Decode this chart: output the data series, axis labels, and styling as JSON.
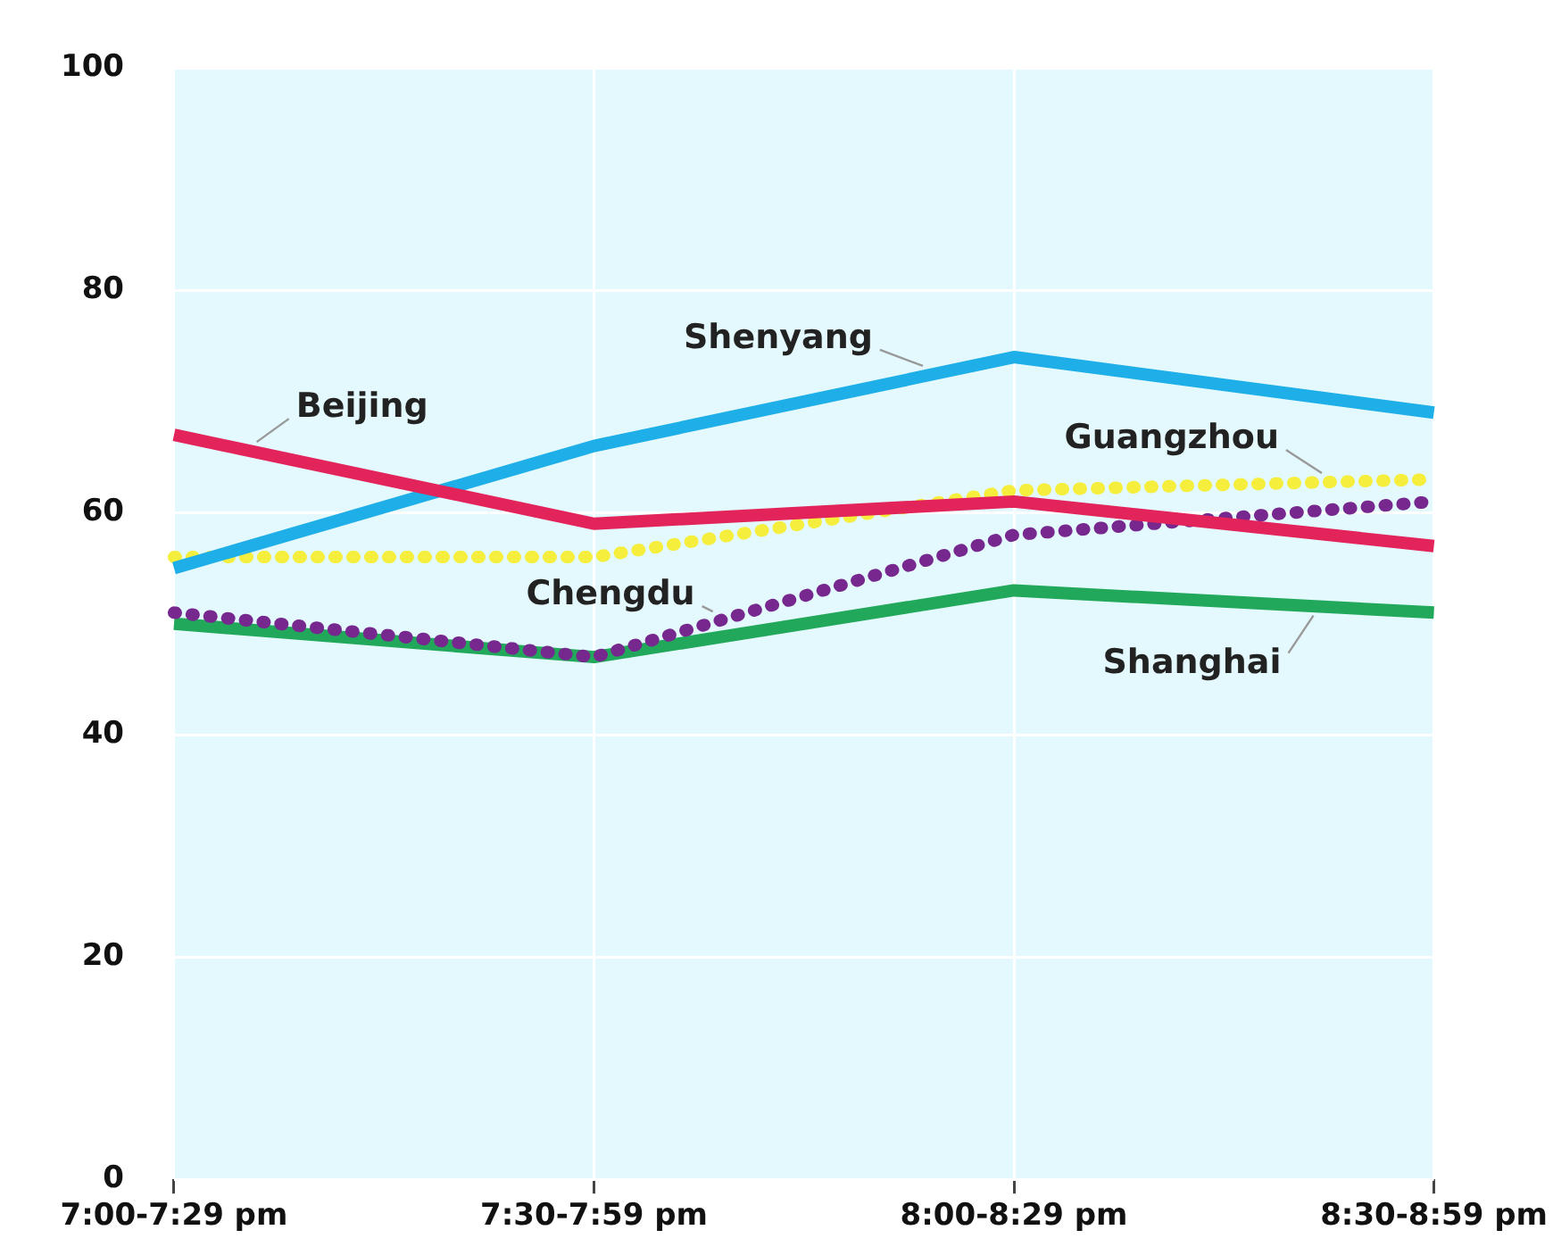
{
  "chart_data": {
    "type": "line",
    "categories": [
      "7:00-7:29 pm",
      "7:30-7:59 pm",
      "8:00-8:29 pm",
      "8:30-8:59 pm"
    ],
    "series": [
      {
        "name": "Beijing",
        "color": "#e3245a",
        "values": [
          67,
          59,
          61,
          57
        ]
      },
      {
        "name": "Shenyang",
        "color": "#1eaee8",
        "values": [
          55,
          66,
          74,
          69
        ]
      },
      {
        "name": "Guangzhou",
        "color": "#f5ee3c",
        "line_style": "dotted",
        "values": [
          56,
          56,
          62,
          63
        ]
      },
      {
        "name": "Chengdu",
        "color": "#76288e",
        "line_style": "dotted",
        "values": [
          51,
          47,
          58,
          61
        ]
      },
      {
        "name": "Shanghai",
        "color": "#22a85a",
        "values": [
          50,
          47,
          53,
          51
        ]
      }
    ],
    "ylim": [
      0,
      100
    ],
    "yticks": [
      0,
      20,
      40,
      60,
      80,
      100
    ],
    "grid": true,
    "legend": false,
    "marker": "none"
  }
}
